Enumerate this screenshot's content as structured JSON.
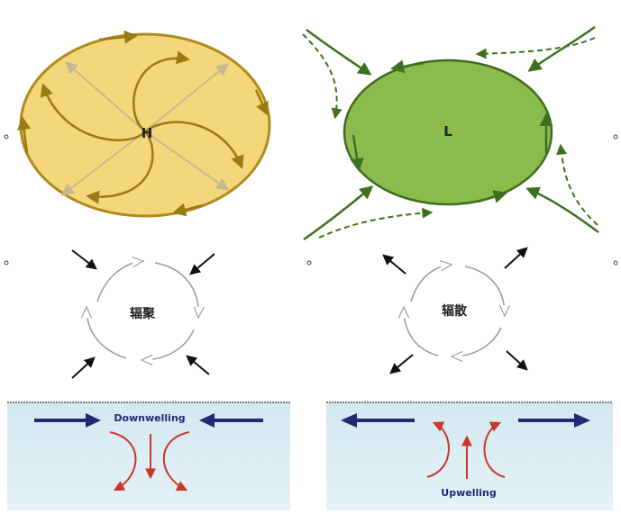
{
  "high_pressure": {
    "label": "H",
    "fill": "#f4d77a",
    "stroke": "#b08a1c",
    "arrow_color": "#9a7a12"
  },
  "low_pressure": {
    "label": "L",
    "fill": "#8bbb4d",
    "stroke": "#3d6e1e",
    "arrow_color": "#4a7a22"
  },
  "convergence": {
    "label": "辐聚"
  },
  "divergence": {
    "label": "辐散"
  },
  "downwelling": {
    "label": "Downwelling"
  },
  "upwelling": {
    "label": "Upwelling"
  },
  "colors": {
    "water": "#d9ecf3",
    "navy": "#1f2c73",
    "red": "#c8372a"
  }
}
